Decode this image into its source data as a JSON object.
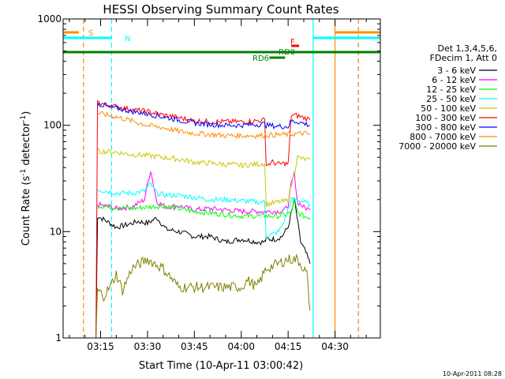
{
  "chart_data": {
    "type": "line",
    "title": "HESSI Observing Summary Count Rates",
    "xlabel": "Start Time (10-Apr-11 03:00:42)",
    "ylabel_parts": [
      "Count Rate (s",
      "-1",
      " detector",
      "-1",
      ")"
    ],
    "y_scale": "log",
    "ylim": [
      1,
      1000
    ],
    "y_ticks": [
      {
        "value": 1,
        "label": "1"
      },
      {
        "value": 10,
        "label": "10"
      },
      {
        "value": 100,
        "label": "100"
      },
      {
        "value": 1000,
        "label": "1000"
      }
    ],
    "xlim_minutes": [
      3.0,
      104.5
    ],
    "x_ticks": [
      {
        "minute": 15,
        "label": "03:15"
      },
      {
        "minute": 30,
        "label": "03:30"
      },
      {
        "minute": 45,
        "label": "03:45"
      },
      {
        "minute": 60,
        "label": "04:00"
      },
      {
        "minute": 75,
        "label": "04:15"
      },
      {
        "minute": 90,
        "label": "04:30"
      }
    ],
    "grid": false,
    "legend_placement": "right",
    "legend_header": [
      "Det 1,3,4,5,6,",
      "FDecim 1, Att 0"
    ],
    "timestamp": "10-Apr-2011 08:28",
    "series": [
      {
        "name": "3 - 6 keV",
        "color": "#000000",
        "x": [
          13.5,
          14,
          17,
          20,
          23,
          27,
          30,
          33,
          36,
          40,
          45,
          50,
          55,
          60,
          65,
          67.5,
          68,
          71,
          73,
          75,
          77,
          79,
          80,
          81,
          82
        ],
        "y": [
          1.0,
          14,
          12.5,
          11,
          11.5,
          12.5,
          12,
          13.5,
          10.5,
          10,
          9,
          9,
          8,
          8.5,
          8,
          8,
          8.5,
          8.5,
          9,
          11,
          20,
          8,
          7,
          6,
          5
        ]
      },
      {
        "name": "6 - 12 keV",
        "color": "#ff00ff",
        "x": [
          14,
          20,
          25,
          29,
          31,
          33,
          36,
          40,
          45,
          50,
          55,
          60,
          65,
          67.5,
          68,
          72,
          74,
          75,
          76,
          77,
          78,
          80,
          82
        ],
        "y": [
          18,
          16.5,
          17,
          20,
          38,
          19,
          17,
          17.5,
          16,
          16.5,
          16,
          15.5,
          15.5,
          15.5,
          15.5,
          15.5,
          16,
          18,
          28,
          35,
          19,
          17,
          16
        ]
      },
      {
        "name": "12 - 25 keV",
        "color": "#00ff00",
        "x": [
          14,
          20,
          25,
          30,
          35,
          40,
          45,
          50,
          55,
          60,
          65,
          67.5,
          68,
          72,
          74,
          76,
          77,
          78,
          80,
          82
        ],
        "y": [
          17.5,
          17,
          16.5,
          17,
          17.5,
          16.5,
          15.5,
          15,
          14.5,
          14,
          14,
          14,
          14,
          14,
          14.5,
          15,
          20,
          15,
          14,
          13.5
        ]
      },
      {
        "name": "25 - 50 keV",
        "color": "#00ffff",
        "x": [
          14,
          20,
          25,
          29,
          31,
          33,
          36,
          40,
          45,
          50,
          55,
          60,
          65,
          67.5,
          68,
          72,
          74,
          76,
          77,
          78,
          80,
          82
        ],
        "y": [
          25,
          23,
          23,
          24,
          28,
          23,
          22,
          22,
          21,
          20,
          20,
          19.5,
          19,
          19,
          9,
          10,
          13,
          20,
          20,
          20,
          19,
          18
        ]
      },
      {
        "name": "50 - 100 keV",
        "color": "#c8c800",
        "x": [
          14,
          20,
          25,
          30,
          35,
          40,
          45,
          50,
          55,
          60,
          65,
          67.5,
          68,
          72,
          75,
          78,
          80,
          82
        ],
        "y": [
          57,
          56,
          53,
          52,
          50,
          48,
          45,
          44,
          43,
          42,
          43,
          44,
          18,
          19,
          19.5,
          50,
          48,
          47
        ]
      },
      {
        "name": "100 - 300 keV",
        "color": "#ff0000",
        "x": [
          13.5,
          14,
          17,
          20,
          25,
          30,
          35,
          40,
          45,
          50,
          55,
          60,
          65,
          67.5,
          68,
          70,
          72,
          74,
          75,
          76,
          78,
          80,
          82
        ],
        "y": [
          1.0,
          165,
          155,
          150,
          140,
          135,
          125,
          118,
          110,
          108,
          108,
          108,
          110,
          112,
          42,
          45,
          43,
          44,
          43,
          125,
          123,
          118,
          113
        ]
      },
      {
        "name": "300 - 800 keV",
        "color": "#0000ff",
        "x": [
          14,
          17,
          20,
          25,
          30,
          35,
          40,
          45,
          50,
          55,
          60,
          65,
          67.5,
          68,
          72,
          75,
          76,
          78,
          80,
          82
        ],
        "y": [
          160,
          150,
          145,
          135,
          128,
          120,
          112,
          105,
          102,
          100,
          100,
          102,
          103,
          100,
          98,
          97,
          110,
          108,
          104,
          100
        ]
      },
      {
        "name": "800 - 7000 keV",
        "color": "#ff8c00",
        "x": [
          14,
          17,
          20,
          25,
          30,
          35,
          40,
          45,
          50,
          55,
          60,
          65,
          70,
          75,
          80,
          82
        ],
        "y": [
          130,
          125,
          120,
          110,
          100,
          95,
          88,
          84,
          82,
          80,
          80,
          80,
          81,
          82,
          84,
          82
        ]
      },
      {
        "name": "7000 - 20000 keV",
        "color": "#808000",
        "x": [
          13.5,
          14,
          16,
          18,
          20,
          22,
          25,
          30,
          35,
          40,
          45,
          50,
          55,
          60,
          62,
          65,
          68,
          72,
          75,
          78,
          80,
          81,
          82
        ],
        "y": [
          1.0,
          2.8,
          2.5,
          3.0,
          4.0,
          2.8,
          4.5,
          5.5,
          4.5,
          3.0,
          3.0,
          3.0,
          3.0,
          3.0,
          3.5,
          3.0,
          4.5,
          5.0,
          5.5,
          5.5,
          4.5,
          4.0,
          1.8
        ]
      }
    ],
    "state_bars": [
      {
        "label": "S",
        "color": "#ff8c00",
        "segments": [
          [
            3.0,
            8.0
          ],
          [
            90,
            104.5
          ]
        ]
      },
      {
        "label": "N",
        "color": "#00ffff",
        "segments": [
          [
            3.0,
            18.5
          ],
          [
            83,
            104.5
          ]
        ]
      },
      {
        "label": "F",
        "color": "#ff0000",
        "segments": [
          [
            76,
            78.5
          ]
        ]
      },
      {
        "label": "RD0",
        "color": "#008000",
        "segments": [
          [
            3.0,
            104.5
          ]
        ]
      },
      {
        "label": "RD6",
        "color": "#008000",
        "segments": [
          [
            69,
            74
          ]
        ]
      }
    ],
    "vertical_markers": [
      {
        "minute": 9.5,
        "color": "#ff8c00",
        "style": "dashed"
      },
      {
        "minute": 18.5,
        "color": "#00ffff",
        "style": "dashed"
      },
      {
        "minute": 83.0,
        "color": "#00ffff",
        "style": "solid"
      },
      {
        "minute": 90.0,
        "color": "#ff8c00",
        "style": "solid"
      },
      {
        "minute": 97.5,
        "color": "#00ffff",
        "style": "dashed"
      },
      {
        "minute": 97.5,
        "color": "#ff8c00",
        "style": "dashed"
      }
    ]
  }
}
